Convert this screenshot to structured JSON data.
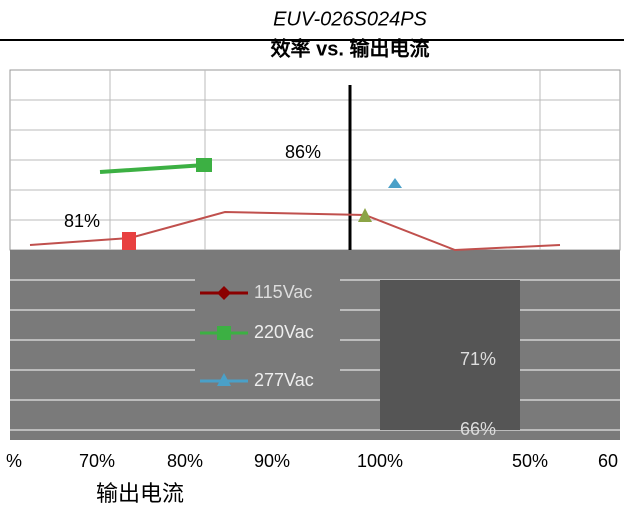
{
  "header": {
    "title": "EUV-026S024PS",
    "subtitle": "效率 vs. 输出电流"
  },
  "y_labels": [
    "86%",
    "81%",
    "71%",
    "66%"
  ],
  "x_labels": [
    "%",
    "70%",
    "80%",
    "90%",
    "100%",
    "50%",
    "60"
  ],
  "x_axis_title": "输出电流",
  "legend": [
    "115Vac",
    "220Vac",
    "277Vac"
  ]
}
